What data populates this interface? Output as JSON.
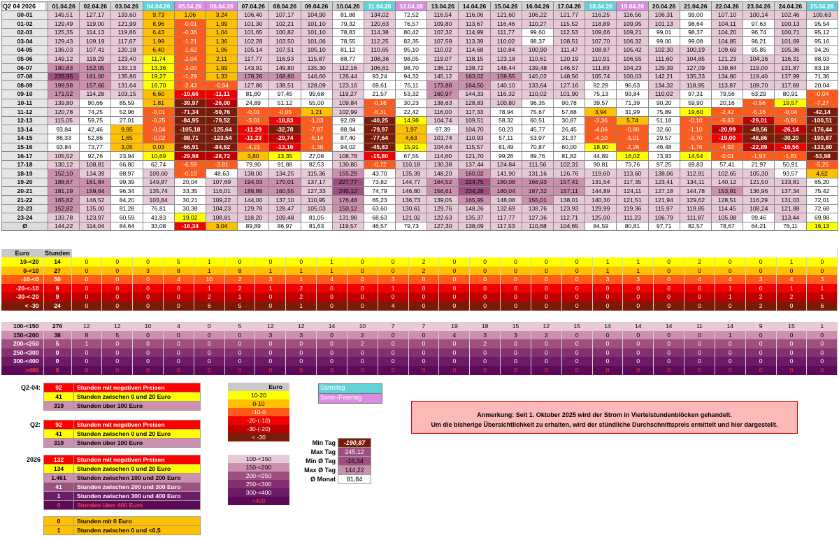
{
  "corner_label": "Q2 04 2026",
  "hour_header": "Uhr",
  "dates": [
    {
      "label": "01.04.26",
      "type": "n"
    },
    {
      "label": "02.04.26",
      "type": "n"
    },
    {
      "label": "03.04.26",
      "type": "n"
    },
    {
      "label": "04.04.26",
      "type": "sat"
    },
    {
      "label": "05.04.26",
      "type": "sun"
    },
    {
      "label": "06.04.26",
      "type": "sun"
    },
    {
      "label": "07.04.26",
      "type": "n"
    },
    {
      "label": "08.04.26",
      "type": "n"
    },
    {
      "label": "09.04.26",
      "type": "n"
    },
    {
      "label": "10.04.26",
      "type": "n"
    },
    {
      "label": "11.04.26",
      "type": "sat"
    },
    {
      "label": "12.04.26",
      "type": "sun"
    },
    {
      "label": "13.04.26",
      "type": "n"
    },
    {
      "label": "14.04.26",
      "type": "n"
    },
    {
      "label": "15.04.26",
      "type": "n"
    },
    {
      "label": "16.04.26",
      "type": "n"
    },
    {
      "label": "17.04.26",
      "type": "n"
    },
    {
      "label": "18.04.26",
      "type": "sat"
    },
    {
      "label": "19.04.26",
      "type": "sun"
    },
    {
      "label": "20.04.26",
      "type": "n"
    },
    {
      "label": "21.04.26",
      "type": "n"
    },
    {
      "label": "22.04.26",
      "type": "n"
    },
    {
      "label": "23.04.26",
      "type": "n"
    },
    {
      "label": "24.04.26",
      "type": "n"
    },
    {
      "label": "25.04.26",
      "type": "sat"
    }
  ],
  "hours": [
    "00-01",
    "01-02",
    "02-03",
    "03-04",
    "04-05",
    "05-06",
    "06-07",
    "07-08",
    "08-09",
    "09-10",
    "10-11",
    "11-12",
    "12-13",
    "13-14",
    "14-15",
    "15-16",
    "16-17",
    "17-18",
    "18-19",
    "19-20",
    "20-21",
    "21-22",
    "22-23",
    "23-24",
    "Ø"
  ],
  "prices": [
    [
      "145,51",
      "127,17",
      "133,60",
      "9,73",
      "1,06",
      "3,24",
      "106,40",
      "107,17",
      "104,90",
      "81,88",
      "134,02",
      "72,52",
      "116,54",
      "116,06",
      "121,60",
      "106,22",
      "121,77",
      "116,25",
      "116,56",
      "106,31",
      "99,00",
      "107,10",
      "100,14",
      "102,46",
      "100,63"
    ],
    [
      "129,49",
      "119,00",
      "121,99",
      "8,96",
      "-0,01",
      "1,99",
      "101,30",
      "102,21",
      "101,10",
      "79,32",
      "120,63",
      "76,57",
      "109,80",
      "113,67",
      "116,46",
      "110,27",
      "115,52",
      "118,89",
      "109,95",
      "101,13",
      "98,64",
      "104,11",
      "97,63",
      "100,13",
      "95,54"
    ],
    [
      "125,35",
      "114,13",
      "119,86",
      "6,43",
      "-0,36",
      "1,04",
      "101,65",
      "100,82",
      "101,10",
      "78,83",
      "114,38",
      "80,42",
      "107,32",
      "114,99",
      "111,77",
      "99,60",
      "112,53",
      "109,66",
      "109,21",
      "99,01",
      "98,37",
      "104,20",
      "96,74",
      "100,71",
      "95,12"
    ],
    [
      "129,43",
      "109,19",
      "117,67",
      "1,99",
      "-1,21",
      "1,36",
      "102,28",
      "103,50",
      "101,06",
      "78,55",
      "112,25",
      "82,35",
      "107,59",
      "113,39",
      "110,02",
      "98,37",
      "108,51",
      "107,70",
      "106,32",
      "99,00",
      "99,08",
      "104,85",
      "96,21",
      "101,69",
      "95,16"
    ],
    [
      "136,03",
      "107,41",
      "120,18",
      "6,40",
      "-1,62",
      "1,06",
      "105,14",
      "107,51",
      "105,10",
      "81,12",
      "110,65",
      "95,10",
      "110,02",
      "114,68",
      "110,84",
      "100,90",
      "111,47",
      "108,87",
      "105,42",
      "102,30",
      "100,19",
      "109,69",
      "95,85",
      "105,36",
      "94,26"
    ],
    [
      "149,12",
      "119,29",
      "123,40",
      "11,74",
      "-2,04",
      "2,11",
      "117,77",
      "116,93",
      "115,87",
      "88,77",
      "108,36",
      "98,05",
      "119,07",
      "118,15",
      "123,18",
      "110,61",
      "120,19",
      "110,91",
      "106,55",
      "111,60",
      "104,85",
      "121,23",
      "104,16",
      "116,31",
      "88,03"
    ],
    [
      "180,83",
      "152,05",
      "133,13",
      "13,36",
      "-3,00",
      "1,99",
      "143,91",
      "149,80",
      "135,30",
      "112,16",
      "106,61",
      "98,70",
      "136,12",
      "138,72",
      "148,44",
      "139,48",
      "146,57",
      "111,83",
      "104,23",
      "129,39",
      "127,09",
      "139,84",
      "119,00",
      "131,87",
      "83,18"
    ],
    [
      "226,95",
      "161,00",
      "135,86",
      "19,27",
      "-1,29",
      "1,33",
      "178,26",
      "168,80",
      "146,60",
      "126,44",
      "93,24",
      "94,32",
      "145,12",
      "163,02",
      "159,55",
      "145,02",
      "148,56",
      "105,74",
      "100,03",
      "142,21",
      "135,33",
      "134,80",
      "119,40",
      "137,99",
      "71,36"
    ],
    [
      "199,98",
      "157,66",
      "131,64",
      "16,70",
      "-2,43",
      "-0,94",
      "127,86",
      "138,51",
      "128,09",
      "123,16",
      "69,61",
      "76,11",
      "173,88",
      "164,50",
      "140,10",
      "133,64",
      "127,16",
      "92,29",
      "96,63",
      "134,32",
      "118,95",
      "113,87",
      "109,70",
      "117,69",
      "20,04"
    ],
    [
      "171,52",
      "114,28",
      "103,15",
      "6,60",
      "-10,66",
      "-11,11",
      "81,80",
      "97,45",
      "99,68",
      "119,27",
      "21,57",
      "53,32",
      "160,97",
      "144,33",
      "116,32",
      "110,02",
      "101,90",
      "75,13",
      "93,84",
      "110,02",
      "97,31",
      "79,56",
      "63,29",
      "80,91",
      "-0,04"
    ],
    [
      "139,80",
      "90,66",
      "85,59",
      "1,81",
      "-39,97",
      "-26,00",
      "24,89",
      "51,12",
      "55,00",
      "109,84",
      "-0,16",
      "30,23",
      "138,63",
      "128,83",
      "100,80",
      "96,35",
      "90,78",
      "39,57",
      "71,39",
      "90,20",
      "59,90",
      "20,16",
      "-0,56",
      "19,57",
      "-7,27"
    ],
    [
      "120,78",
      "74,25",
      "52,96",
      "-0,01",
      "-71,34",
      "-59,76",
      "-0,01",
      "-0,05",
      "1,21",
      "102,99",
      "-8,31",
      "22,42",
      "116,00",
      "117,33",
      "78,94",
      "75,67",
      "57,88",
      "3,94",
      "31,99",
      "75,89",
      "19,60",
      "-2,42",
      "-5,16",
      "-0,04",
      "-42,14"
    ],
    [
      "115,05",
      "59,75",
      "27,01",
      "-0,25",
      "-84,95",
      "-79,52",
      "-3,01",
      "-18,83",
      "-1,03",
      "92,09",
      "-40,25",
      "14,98",
      "104,74",
      "109,51",
      "58,32",
      "60,51",
      "30,87",
      "-3,36",
      "5,74",
      "51,18",
      "-0,10",
      "-5,63",
      "-29,01",
      "-0,91",
      "-100,51"
    ],
    [
      "93,84",
      "42,46",
      "9,95",
      "-0,04",
      "-105,18",
      "-125,64",
      "-11,29",
      "-32,78",
      "-7,87",
      "88,94",
      "-79,97",
      "1,97",
      "97,39",
      "104,70",
      "50,23",
      "45,77",
      "26,45",
      "-4,06",
      "-0,80",
      "32,60",
      "-1,10",
      "-20,99",
      "-49,56",
      "-26,14",
      "-176,44"
    ],
    [
      "86,33",
      "52,86",
      "1,65",
      "-0,02",
      "-98,71",
      "-123,54",
      "-11,23",
      "-29,74",
      "-6,14",
      "87,40",
      "-77,64",
      "4,63",
      "101,74",
      "110,93",
      "57,11",
      "53,97",
      "31,37",
      "-4,10",
      "-3,01",
      "29,57",
      "-3,70",
      "-19,00",
      "-48,86",
      "-30,20",
      "-190,87"
    ],
    [
      "93,84",
      "73,77",
      "3,05",
      "0,03",
      "-66,91",
      "-84,62",
      "-4,21",
      "-13,16",
      "-1,30",
      "94,02",
      "-45,83",
      "15,91",
      "104,64",
      "115,57",
      "81,49",
      "70,87",
      "60,00",
      "18,90",
      "-2,26",
      "46,48",
      "-1,76",
      "-4,92",
      "-22,89",
      "-16,56",
      "-133,80"
    ],
    [
      "105,52",
      "92,76",
      "23,94",
      "10,69",
      "-29,98",
      "-28,72",
      "3,80",
      "13,35",
      "27,08",
      "108,78",
      "-15,80",
      "67,55",
      "114,60",
      "121,70",
      "99,26",
      "89,76",
      "81,82",
      "44,89",
      "16,02",
      "73,93",
      "14,54",
      "-0,01",
      "-1,93",
      "-1,81",
      "-53,98"
    ],
    [
      "130,12",
      "108,81",
      "66,80",
      "62,74",
      "-6,59",
      "-3,81",
      "79,90",
      "91,88",
      "82,53",
      "130,80",
      "-0,72",
      "110,18",
      "130,38",
      "137,44",
      "124,84",
      "111,56",
      "102,31",
      "90,81",
      "73,76",
      "97,25",
      "69,83",
      "57,41",
      "21,97",
      "50,91",
      "-5,25"
    ],
    [
      "152,10",
      "134,39",
      "88,97",
      "109,60",
      "-0,10",
      "48,63",
      "138,00",
      "134,25",
      "115,36",
      "155,29",
      "43,70",
      "135,39",
      "148,20",
      "160,02",
      "141,90",
      "131,16",
      "126,76",
      "119,60",
      "113,60",
      "138,06",
      "112,91",
      "102,65",
      "105,30",
      "93,57",
      "4,62"
    ],
    [
      "188,67",
      "161,84",
      "99,39",
      "149,87",
      "20,04",
      "107,69",
      "194,03",
      "170,01",
      "137,17",
      "227,77",
      "73,82",
      "144,77",
      "164,52",
      "224,75",
      "180,08",
      "166,93",
      "157,41",
      "131,54",
      "117,35",
      "123,41",
      "134,11",
      "140,12",
      "121,50",
      "133,81",
      "65,20"
    ],
    [
      "181,19",
      "159,64",
      "96,34",
      "135,74",
      "33,35",
      "116,01",
      "188,88",
      "160,55",
      "127,33",
      "245,12",
      "74,79",
      "146,80",
      "156,61",
      "234,28",
      "180,04",
      "187,32",
      "157,11",
      "144,89",
      "124,11",
      "127,18",
      "144,78",
      "153,91",
      "136,96",
      "137,34",
      "75,42"
    ],
    [
      "165,82",
      "146,52",
      "84,20",
      "103,84",
      "30,21",
      "109,22",
      "144,00",
      "137,10",
      "110,95",
      "176,48",
      "65,23",
      "136,73",
      "139,05",
      "165,95",
      "148,08",
      "155,01",
      "138,01",
      "140,30",
      "121,51",
      "121,94",
      "129,62",
      "128,51",
      "116,29",
      "131,03",
      "72,01"
    ],
    [
      "152,82",
      "135,00",
      "81,28",
      "76,81",
      "30,38",
      "104,23",
      "129,78",
      "128,47",
      "105,03",
      "150,12",
      "63,60",
      "130,61",
      "129,76",
      "148,26",
      "132,69",
      "138,76",
      "123,93",
      "129,99",
      "119,36",
      "115,97",
      "119,85",
      "114,45",
      "108,24",
      "121,88",
      "72,68"
    ],
    [
      "133,78",
      "123,97",
      "60,59",
      "41,83",
      "19,02",
      "108,81",
      "118,20",
      "109,48",
      "81,05",
      "131,98",
      "68,63",
      "121,02",
      "122,63",
      "135,37",
      "117,77",
      "127,36",
      "112,71",
      "125,00",
      "111,23",
      "106,79",
      "111,87",
      "105,08",
      "99,46",
      "113,44",
      "69,98"
    ],
    [
      "144,22",
      "114,04",
      "84,64",
      "33,08",
      "-16,34",
      "3,04",
      "89,89",
      "86,97",
      "81,63",
      "119,57",
      "46,57",
      "79,73",
      "127,30",
      "138,09",
      "117,53",
      "110,68",
      "104,65",
      "84,59",
      "80,81",
      "97,71",
      "82,57",
      "78,67",
      "64,21",
      "76,11",
      "16,13"
    ]
  ],
  "count_headers": {
    "euro": "Euro",
    "hours": "Stunden"
  },
  "count_rows_low": [
    {
      "label": "10-<20",
      "total": "14",
      "values": [
        "0",
        "0",
        "0",
        "5",
        "1",
        "0",
        "0",
        "0",
        "1",
        "0",
        "0",
        "2",
        "0",
        "0",
        "0",
        "0",
        "0",
        "1",
        "1",
        "0",
        "2",
        "0",
        "0",
        "1",
        "0"
      ]
    },
    {
      "label": "0-<10",
      "total": "27",
      "values": [
        "0",
        "0",
        "3",
        "8",
        "1",
        "8",
        "1",
        "1",
        "1",
        "0",
        "0",
        "2",
        "0",
        "0",
        "0",
        "0",
        "0",
        "1",
        "1",
        "0",
        "0",
        "0",
        "0",
        "0",
        "0"
      ]
    },
    {
      "label": "-10-<0",
      "total": "50",
      "values": [
        "0",
        "0",
        "0",
        "4",
        "10",
        "2",
        "3",
        "1",
        "4",
        "0",
        "3",
        "0",
        "0",
        "0",
        "0",
        "0",
        "0",
        "3",
        "3",
        "0",
        "4",
        "4",
        "3",
        "4",
        "3"
      ]
    },
    {
      "label": "-20-<-10",
      "total": "9",
      "values": [
        "0",
        "0",
        "0",
        "0",
        "1",
        "2",
        "1",
        "2",
        "0",
        "0",
        "1",
        "0",
        "0",
        "0",
        "0",
        "0",
        "0",
        "0",
        "0",
        "0",
        "0",
        "1",
        "0",
        "1",
        "1"
      ]
    },
    {
      "label": "-30-<-20",
      "total": "9",
      "values": [
        "0",
        "0",
        "0",
        "0",
        "2",
        "1",
        "0",
        "2",
        "0",
        "0",
        "0",
        "0",
        "0",
        "0",
        "0",
        "0",
        "0",
        "0",
        "0",
        "0",
        "0",
        "1",
        "2",
        "2",
        "1"
      ]
    },
    {
      "label": "< -30",
      "total": "24",
      "values": [
        "0",
        "0",
        "0",
        "0",
        "6",
        "5",
        "0",
        "1",
        "0",
        "0",
        "4",
        "0",
        "0",
        "0",
        "0",
        "0",
        "0",
        "0",
        "0",
        "0",
        "0",
        "0",
        "2",
        "0",
        "6"
      ]
    }
  ],
  "count_rows_high": [
    {
      "label": "100-<150",
      "total": "276",
      "values": [
        "12",
        "12",
        "10",
        "4",
        "0",
        "5",
        "12",
        "12",
        "14",
        "10",
        "7",
        "7",
        "19",
        "18",
        "15",
        "12",
        "15",
        "14",
        "14",
        "14",
        "11",
        "14",
        "9",
        "15",
        "1"
      ]
    },
    {
      "label": "150-<200",
      "total": "38",
      "values": [
        "8",
        "5",
        "0",
        "0",
        "0",
        "0",
        "3",
        "3",
        "0",
        "2",
        "0",
        "0",
        "4",
        "3",
        "3",
        "2",
        "0",
        "0",
        "0",
        "0",
        "0",
        "1",
        "0",
        "0",
        "0"
      ]
    },
    {
      "label": "200-<250",
      "total": "5",
      "values": [
        "1",
        "0",
        "0",
        "0",
        "0",
        "0",
        "0",
        "0",
        "0",
        "2",
        "0",
        "0",
        "0",
        "2",
        "0",
        "0",
        "0",
        "0",
        "0",
        "0",
        "0",
        "0",
        "0",
        "0",
        "0"
      ]
    },
    {
      "label": "250-<300",
      "total": "0",
      "values": [
        "0",
        "0",
        "0",
        "0",
        "0",
        "0",
        "0",
        "0",
        "0",
        "0",
        "0",
        "0",
        "0",
        "0",
        "0",
        "0",
        "0",
        "0",
        "0",
        "0",
        "0",
        "0",
        "0",
        "0",
        "0"
      ]
    },
    {
      "label": "300-<400",
      "total": "0",
      "values": [
        "0",
        "0",
        "0",
        "0",
        "0",
        "0",
        "0",
        "0",
        "0",
        "0",
        "0",
        "0",
        "0",
        "0",
        "0",
        "0",
        "0",
        "0",
        "0",
        "0",
        "0",
        "0",
        "0",
        "0",
        "0"
      ]
    },
    {
      "label": ">400",
      "total": "0",
      "values": [
        "0",
        "0",
        "0",
        "0",
        "0",
        "0",
        "0",
        "0",
        "0",
        "0",
        "0",
        "0",
        "0",
        "0",
        "0",
        "0",
        "0",
        "0",
        "0",
        "0",
        "0",
        "0",
        "0",
        "0",
        "0"
      ]
    }
  ],
  "summary_q204": {
    "label": "Q2-04:",
    "rows": [
      {
        "num": "92",
        "text": "Stunden mit negativen Preisen"
      },
      {
        "num": "41",
        "text": "Stunden zwischen 0 und 20 Euro"
      },
      {
        "num": "319",
        "text": "Stunden über 100 Euro"
      }
    ]
  },
  "summary_q2": {
    "label": "Q2:",
    "rows": [
      {
        "num": "92",
        "text": "Stunden mit negativen Preisen"
      },
      {
        "num": "41",
        "text": "Stunden zwischen 0 und 20 Euro"
      },
      {
        "num": "319",
        "text": "Stunden über 100 Euro"
      }
    ]
  },
  "summary_2026": {
    "label": "2026",
    "rows": [
      {
        "num": "132",
        "text": "Stunden mit negativen Preisen"
      },
      {
        "num": "134",
        "text": "Stunden zwischen 0 und 20 Euro"
      },
      {
        "num": "1.461",
        "text": "Stunden zwischen 100 und 200 Euro"
      },
      {
        "num": "41",
        "text": "Stunden zwischen 200 und 300 Euro"
      },
      {
        "num": "1",
        "text": "Stunden zwischen 300 und 400 Euro"
      },
      {
        "num": "0",
        "text": "Stunden über 400 Euro"
      }
    ]
  },
  "summary_zero": {
    "rows": [
      {
        "num": "0",
        "text": "Stunden mit 0 Euro"
      },
      {
        "num": "1",
        "text": "Stunden zwischen 0 und <0,5"
      }
    ]
  },
  "legend_low": {
    "header": "Euro",
    "items": [
      "10-20",
      "0-10",
      "-10-0",
      "-20-(-10)",
      "-30-(-20)",
      "< -30"
    ]
  },
  "legend_high": {
    "items": [
      "100-<150",
      "150-<200",
      "200-<250",
      "250-<300",
      "300-<400",
      ">400"
    ]
  },
  "day_legend": {
    "saturday": "Samstag",
    "sunday": "Sonn-/Feiertag"
  },
  "stats": [
    {
      "label": "Min Tag",
      "value": "-190,87"
    },
    {
      "label": "Max Tag",
      "value": "245,12"
    },
    {
      "label": "Min Ø Tag",
      "value": "-16,34"
    },
    {
      "label": "Max Ø Tag",
      "value": "144,22"
    },
    {
      "label": "Ø Monat",
      "value": "81,84"
    }
  ],
  "note": {
    "line1": "Anmerkung: Seit 1. Oktober 2025 wird der Strom in Viertelstundenblöcken gehandelt.",
    "line2": "Um die bisherige Übersichtlichkeit zu erhalten, wird der stündliche Durchschnittspreis ermittelt und hier dargestellt."
  },
  "colors": {
    "c_10_20": "#ffff00",
    "c_0_10": "#ffc000",
    "c_neg10": "#ff5a1a",
    "c_neg20": "#f00000",
    "c_neg30": "#c00000",
    "c_lt30": "#7b1a06",
    "c_100": "#e8c9d8",
    "c_150": "#cc8fae",
    "c_200": "#a04f83",
    "c_250": "#87306f",
    "c_300": "#6e1b67",
    "c_400": "#5c0a58",
    "saturday": "#5fd3d8",
    "sunday": "#d98ce0",
    "note_bg": "#fdb8b8",
    "note_border": "#e00000"
  }
}
